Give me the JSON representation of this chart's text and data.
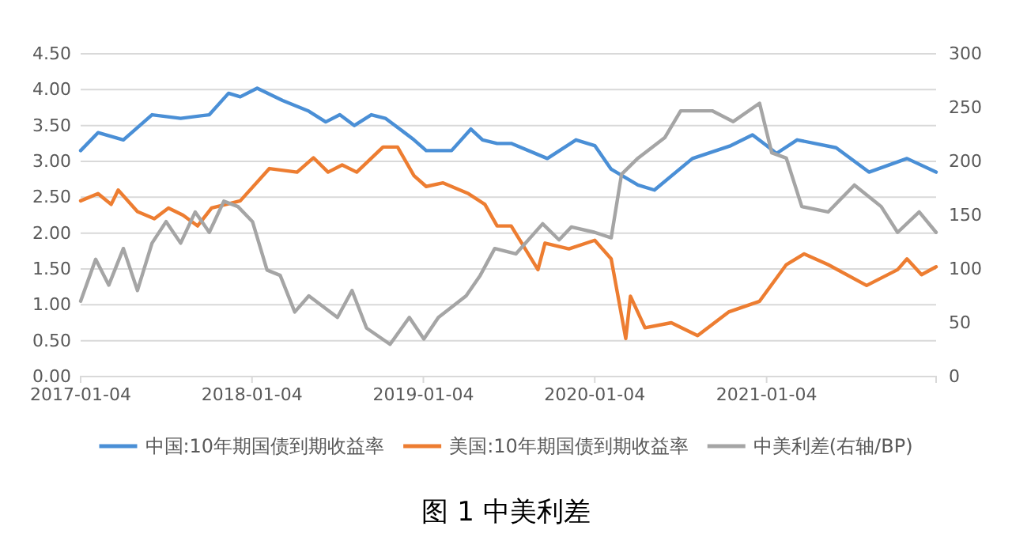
{
  "chart_data": {
    "type": "line",
    "title": "图 1 中美利差",
    "xlim": [
      "2017-01-04",
      "2021-12-31"
    ],
    "xticks": [
      "2017-01-04",
      "2018-01-04",
      "2019-01-04",
      "2020-01-04",
      "2021-01-04"
    ],
    "ylim": [
      0,
      4.5
    ],
    "yticks": [
      {
        "value": 0,
        "label": "0.00"
      },
      {
        "value": 0.5,
        "label": "0.50"
      },
      {
        "value": 1,
        "label": "1.00"
      },
      {
        "value": 1.5,
        "label": "1.50"
      },
      {
        "value": 2,
        "label": "2.00"
      },
      {
        "value": 2.5,
        "label": "2.50"
      },
      {
        "value": 3,
        "label": "3.00"
      },
      {
        "value": 3.5,
        "label": "3.50"
      },
      {
        "value": 4,
        "label": "4.00"
      },
      {
        "value": 4.5,
        "label": "4.50"
      }
    ],
    "y2lim": [
      0,
      300
    ],
    "y2ticks": [
      0,
      50,
      100,
      150,
      200,
      250,
      300
    ],
    "grid": "y",
    "legend": "bottom",
    "line_style": "solid",
    "series": [
      {
        "name": "中国:10年期国债到期收益率",
        "color": "#4a8fd6",
        "x": [
          "2017-01-04",
          "2017-02-10",
          "2017-04-05",
          "2017-06-05",
          "2017-08-05",
          "2017-10-05",
          "2017-11-15",
          "2017-12-10",
          "2018-01-15",
          "2018-03-10",
          "2018-05-05",
          "2018-06-10",
          "2018-07-10",
          "2018-08-10",
          "2018-09-15",
          "2018-10-15",
          "2018-11-15",
          "2018-12-15",
          "2019-01-10",
          "2019-03-05",
          "2019-04-15",
          "2019-05-10",
          "2019-06-10",
          "2019-07-10",
          "2019-09-25",
          "2019-11-25",
          "2020-01-04",
          "2020-02-08",
          "2020-04-05",
          "2020-05-10",
          "2020-07-30",
          "2020-10-20",
          "2020-12-05",
          "2021-01-04",
          "2021-01-25",
          "2021-03-10",
          "2021-06-01",
          "2021-08-10",
          "2021-10-30",
          "2021-12-31"
        ],
        "values": [
          3.15,
          3.4,
          3.3,
          3.65,
          3.6,
          3.65,
          3.95,
          3.9,
          4.02,
          3.85,
          3.7,
          3.55,
          3.65,
          3.5,
          3.65,
          3.6,
          3.45,
          3.3,
          3.15,
          3.15,
          3.45,
          3.3,
          3.25,
          3.25,
          3.04,
          3.3,
          3.22,
          2.89,
          2.67,
          2.6,
          3.04,
          3.22,
          3.37,
          3.22,
          3.11,
          3.3,
          3.19,
          2.85,
          3.04,
          2.85
        ]
      },
      {
        "name": "美国:10年期国债到期收益率",
        "color": "#ed7d31",
        "x": [
          "2017-01-04",
          "2017-02-10",
          "2017-03-10",
          "2017-03-25",
          "2017-05-05",
          "2017-06-10",
          "2017-07-10",
          "2017-08-10",
          "2017-09-10",
          "2017-10-10",
          "2017-11-10",
          "2017-12-10",
          "2018-02-10",
          "2018-04-10",
          "2018-05-15",
          "2018-06-15",
          "2018-07-15",
          "2018-08-15",
          "2018-10-10",
          "2018-11-10",
          "2018-12-15",
          "2019-01-10",
          "2019-02-15",
          "2019-04-10",
          "2019-05-15",
          "2019-06-10",
          "2019-07-10",
          "2019-09-05",
          "2019-09-20",
          "2019-11-10",
          "2020-01-04",
          "2020-02-08",
          "2020-03-10",
          "2020-03-20",
          "2020-04-20",
          "2020-06-15",
          "2020-08-10",
          "2020-10-15",
          "2020-12-20",
          "2021-02-15",
          "2021-03-25",
          "2021-05-15",
          "2021-08-05",
          "2021-10-10",
          "2021-10-30",
          "2021-11-30",
          "2021-12-31"
        ],
        "values": [
          2.45,
          2.55,
          2.4,
          2.6,
          2.3,
          2.2,
          2.35,
          2.25,
          2.1,
          2.35,
          2.4,
          2.45,
          2.9,
          2.85,
          3.05,
          2.85,
          2.95,
          2.85,
          3.2,
          3.2,
          2.8,
          2.65,
          2.7,
          2.55,
          2.4,
          2.1,
          2.1,
          1.49,
          1.86,
          1.78,
          1.9,
          1.64,
          0.53,
          1.12,
          0.68,
          0.75,
          0.57,
          0.9,
          1.05,
          1.56,
          1.71,
          1.56,
          1.27,
          1.49,
          1.64,
          1.42,
          1.53
        ]
      },
      {
        "name": "中美利差(右轴/BP)",
        "color": "#a5a5a5",
        "axis": "y2",
        "x": [
          "2017-01-04",
          "2017-02-05",
          "2017-03-05",
          "2017-04-05",
          "2017-05-05",
          "2017-06-05",
          "2017-07-05",
          "2017-08-05",
          "2017-09-05",
          "2017-10-05",
          "2017-11-05",
          "2017-12-05",
          "2018-01-05",
          "2018-02-05",
          "2018-03-05",
          "2018-04-05",
          "2018-05-05",
          "2018-07-05",
          "2018-08-05",
          "2018-09-05",
          "2018-10-25",
          "2018-12-05",
          "2019-01-05",
          "2019-02-05",
          "2019-04-05",
          "2019-05-05",
          "2019-06-05",
          "2019-07-20",
          "2019-09-15",
          "2019-10-20",
          "2019-11-15",
          "2020-01-04",
          "2020-02-08",
          "2020-03-01",
          "2020-04-05",
          "2020-06-01",
          "2020-07-05",
          "2020-09-10",
          "2020-10-25",
          "2020-12-20",
          "2021-01-15",
          "2021-02-15",
          "2021-03-20",
          "2021-05-15",
          "2021-07-10",
          "2021-09-05",
          "2021-10-10",
          "2021-11-25",
          "2021-12-31"
        ],
        "values": [
          70,
          109,
          85,
          119,
          80,
          124,
          144,
          124,
          153,
          134,
          163,
          158,
          144,
          99,
          94,
          60,
          75,
          55,
          80,
          45,
          30,
          55,
          35,
          55,
          75,
          94,
          119,
          114,
          142,
          127,
          139,
          134,
          129,
          188,
          203,
          222,
          247,
          247,
          237,
          254,
          208,
          203,
          158,
          153,
          178,
          158,
          134,
          153,
          134
        ]
      }
    ]
  }
}
